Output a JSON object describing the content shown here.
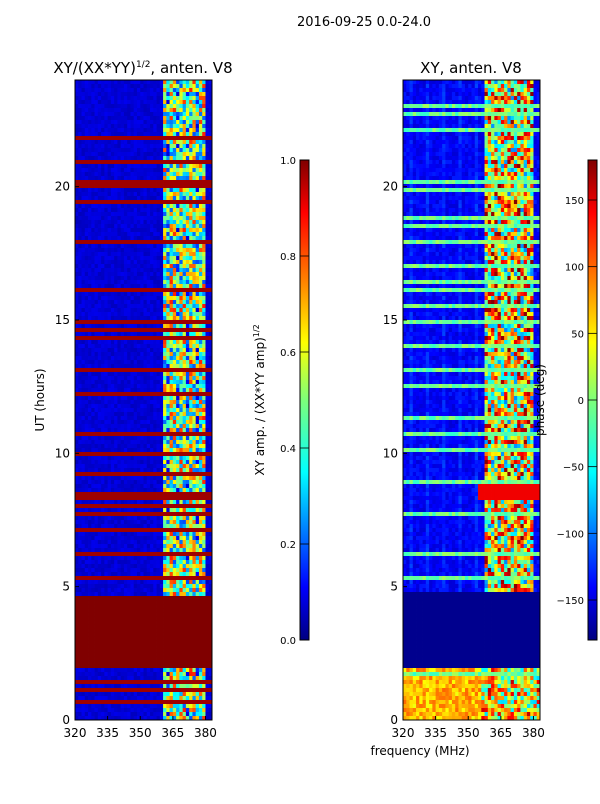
{
  "figure": {
    "suptitle": "2016-09-25 0.0-24.0",
    "xlabel_shared": "frequency (MHz)"
  },
  "colors": {
    "jet_dark_blue": "#000080",
    "jet_blue": "#0000ff",
    "jet_cyan": "#00ffff",
    "jet_green": "#7dff7a",
    "jet_yellow": "#ffff00",
    "jet_orange": "#ff8000",
    "jet_red": "#ff0000",
    "jet_dark_red": "#800000"
  },
  "chart_data": [
    {
      "type": "heatmap",
      "title_main": "XY/(XX*YY)",
      "title_exponent": "1/2",
      "title_suffix": ", anten. V8",
      "xlabel": "",
      "ylabel": "UT (hours)",
      "xlim": [
        320,
        383
      ],
      "ylim": [
        0,
        24
      ],
      "xticks": [
        320,
        335,
        350,
        365,
        380
      ],
      "yticks": [
        0,
        5,
        10,
        15,
        20
      ],
      "colorbar": {
        "label_main": "XY amp. / (XX*YY amp)",
        "label_exponent": "1/2",
        "range": [
          0.0,
          1.0
        ],
        "ticks": [
          0.0,
          0.2,
          0.4,
          0.6,
          0.8,
          1.0
        ],
        "tick_labels": [
          "0.0",
          "0.2",
          "0.4",
          "0.6",
          "0.8",
          "1.0"
        ]
      },
      "regions": [
        {
          "name": "saturated block",
          "t_range": [
            1.9,
            4.7
          ],
          "freq_range": [
            320,
            383
          ],
          "value": 1.0
        },
        {
          "name": "low-amplitude background",
          "t_range": [
            0,
            24
          ],
          "freq_range": [
            320,
            360
          ],
          "value": 0.05
        },
        {
          "name": "active channels",
          "t_range": [
            0,
            24
          ],
          "freq_range": [
            360,
            380
          ],
          "value": 0.5
        }
      ]
    },
    {
      "type": "heatmap",
      "title": "XY, anten. V8",
      "xlabel": "frequency (MHz)",
      "ylabel": "",
      "xlim": [
        320,
        383
      ],
      "ylim": [
        0,
        24
      ],
      "xticks": [
        320,
        335,
        350,
        365,
        380
      ],
      "yticks": [
        0,
        5,
        10,
        15,
        20
      ],
      "colorbar": {
        "label": "phase (deg)",
        "range": [
          -180,
          180
        ],
        "ticks": [
          -150,
          -100,
          -50,
          0,
          50,
          100,
          150
        ],
        "tick_labels": [
          "−150",
          "−100",
          "−50",
          "0",
          "50",
          "100",
          "150"
        ]
      },
      "regions": [
        {
          "name": "low-phase block",
          "t_range": [
            1.9,
            4.8
          ],
          "freq_range": [
            320,
            383
          ],
          "value": -175
        },
        {
          "name": "wrapped-phase band",
          "t_range": [
            8.2,
            8.9
          ],
          "freq_range": [
            355,
            383
          ],
          "value": 140
        },
        {
          "name": "mixed-phase channels",
          "t_range": [
            0,
            24
          ],
          "freq_range": [
            358,
            380
          ],
          "value": 60
        }
      ]
    }
  ]
}
